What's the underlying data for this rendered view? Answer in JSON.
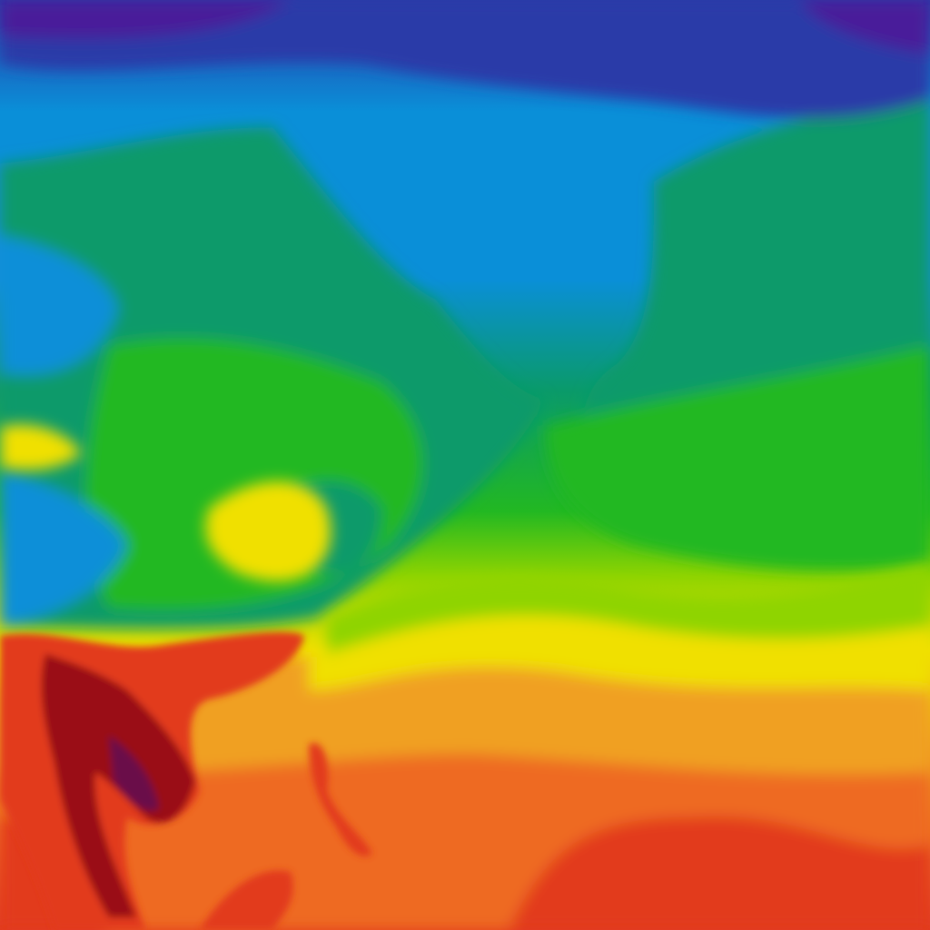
{
  "map": {
    "layer": "temperature",
    "palette": {
      "coldest": "#4a1e9a",
      "very_cold": "#2a3aa8",
      "cold": "#0a8fd8",
      "cool": "#0a9a6a",
      "mild": "#22b822",
      "warm_mild": "#8fd400",
      "warm": "#f0e000",
      "hot": "#f0a020",
      "hotter": "#ee6a20",
      "very_hot": "#e23a1e",
      "extreme": "#9a0a14",
      "extreme_max": "#6a0a4a"
    }
  }
}
